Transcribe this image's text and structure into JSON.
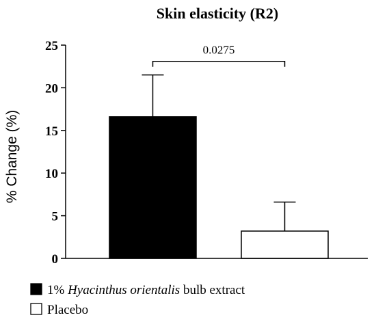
{
  "chart_data": {
    "type": "bar",
    "title": "Skin elasticity (R2)",
    "ylabel": "% Change (%)",
    "xlabel": "",
    "ylim": [
      0,
      25
    ],
    "yticks": [
      0,
      5,
      10,
      15,
      20,
      25
    ],
    "grid": false,
    "legend_position": "bottom-left",
    "series": [
      {
        "name_parts": [
          "1% ",
          "Hyacinthus orientalis",
          " bulb extract"
        ],
        "value": 16.6,
        "error": 4.9,
        "fill": "#000000"
      },
      {
        "name_parts": [
          "Placebo"
        ],
        "value": 3.2,
        "error": 3.4,
        "fill": "#ffffff"
      }
    ],
    "annotation": {
      "text": "0.0275",
      "between": [
        0,
        1
      ],
      "y": 23.1
    }
  }
}
